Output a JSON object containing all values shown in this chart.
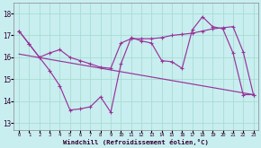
{
  "bg_color": "#c8eef0",
  "grid_color": "#a8ddd0",
  "line_color": "#993399",
  "xlabel": "Windchill (Refroidissement éolien,°C)",
  "x_ticks": [
    0,
    1,
    2,
    3,
    4,
    5,
    6,
    7,
    8,
    9,
    10,
    11,
    12,
    13,
    14,
    15,
    16,
    17,
    18,
    19,
    20,
    21,
    22,
    23
  ],
  "y_ticks": [
    13,
    14,
    15,
    16,
    17,
    18
  ],
  "xlim": [
    -0.5,
    23.5
  ],
  "ylim": [
    12.7,
    18.5
  ],
  "line1_x": [
    0,
    1,
    2,
    3,
    4,
    5,
    6,
    7,
    8,
    9,
    10,
    11,
    12,
    13,
    14,
    15,
    16,
    17,
    18,
    19,
    20,
    21,
    22,
    23
  ],
  "line1_y": [
    17.2,
    16.6,
    16.0,
    16.2,
    16.35,
    16.0,
    15.85,
    15.7,
    15.55,
    15.5,
    16.65,
    16.85,
    16.85,
    16.85,
    16.9,
    17.0,
    17.05,
    17.1,
    17.2,
    17.3,
    17.35,
    17.4,
    16.25,
    14.3
  ],
  "line2_x": [
    0,
    1,
    2,
    3,
    4,
    5,
    6,
    7,
    8,
    9,
    10,
    11,
    12,
    13,
    14,
    15,
    16,
    17,
    18,
    19,
    20,
    21,
    22,
    23
  ],
  "line2_y": [
    17.2,
    16.6,
    16.0,
    15.4,
    14.7,
    13.6,
    13.65,
    13.75,
    14.2,
    13.5,
    15.7,
    16.9,
    16.75,
    16.65,
    15.85,
    15.8,
    15.5,
    17.25,
    17.85,
    17.4,
    17.3,
    16.2,
    14.3,
    14.3
  ],
  "line3_x": [
    0,
    23
  ],
  "line3_y": [
    16.15,
    14.3
  ]
}
